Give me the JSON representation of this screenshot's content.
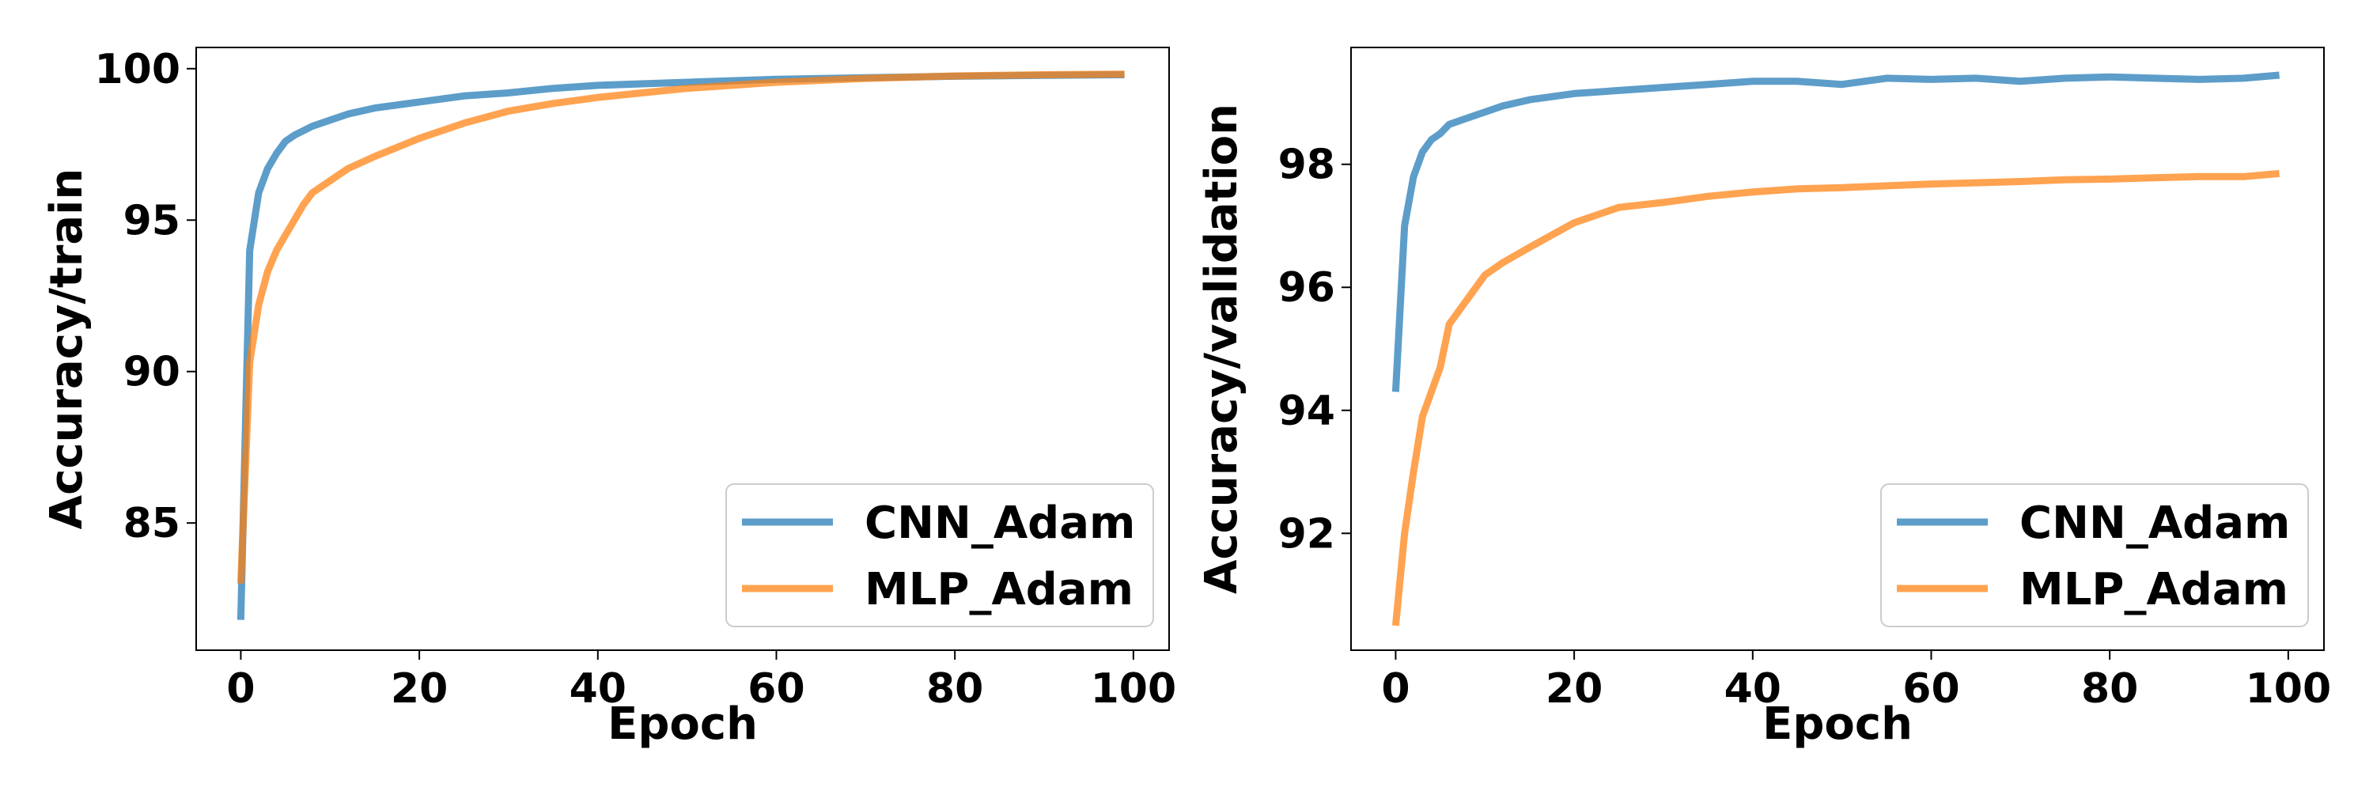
{
  "chart_data": [
    {
      "type": "line",
      "title": "",
      "xlabel": "Epoch",
      "ylabel": "Accuracy/train",
      "xlim": [
        -5,
        104
      ],
      "ylim": [
        80.8,
        100.7
      ],
      "xticks": [
        0,
        20,
        40,
        60,
        80,
        100
      ],
      "yticks": [
        85,
        90,
        95,
        100
      ],
      "grid": false,
      "legend_position": "lower-right",
      "series": [
        {
          "name": "CNN_Adam",
          "color": "#1f77b4",
          "points": [
            [
              0,
              81.8
            ],
            [
              1,
              94.0
            ],
            [
              2,
              95.9
            ],
            [
              3,
              96.7
            ],
            [
              4,
              97.2
            ],
            [
              5,
              97.6
            ],
            [
              6,
              97.8
            ],
            [
              8,
              98.1
            ],
            [
              10,
              98.3
            ],
            [
              12,
              98.5
            ],
            [
              15,
              98.7
            ],
            [
              20,
              98.9
            ],
            [
              25,
              99.1
            ],
            [
              30,
              99.2
            ],
            [
              35,
              99.35
            ],
            [
              40,
              99.45
            ],
            [
              50,
              99.55
            ],
            [
              60,
              99.65
            ],
            [
              70,
              99.7
            ],
            [
              80,
              99.75
            ],
            [
              90,
              99.78
            ],
            [
              99,
              99.8
            ]
          ]
        },
        {
          "name": "MLP_Adam",
          "color": "#ff7f0e",
          "points": [
            [
              0,
              83.0
            ],
            [
              1,
              90.3
            ],
            [
              2,
              92.2
            ],
            [
              3,
              93.3
            ],
            [
              4,
              94.0
            ],
            [
              5,
              94.5
            ],
            [
              6,
              95.0
            ],
            [
              7,
              95.5
            ],
            [
              8,
              95.9
            ],
            [
              10,
              96.3
            ],
            [
              12,
              96.7
            ],
            [
              15,
              97.1
            ],
            [
              20,
              97.7
            ],
            [
              25,
              98.2
            ],
            [
              30,
              98.6
            ],
            [
              35,
              98.85
            ],
            [
              40,
              99.05
            ],
            [
              45,
              99.2
            ],
            [
              50,
              99.35
            ],
            [
              60,
              99.55
            ],
            [
              70,
              99.68
            ],
            [
              80,
              99.76
            ],
            [
              90,
              99.8
            ],
            [
              99,
              99.82
            ]
          ]
        }
      ]
    },
    {
      "type": "line",
      "title": "",
      "xlabel": "Epoch",
      "ylabel": "Accuracy/validation",
      "xlim": [
        -5,
        104
      ],
      "ylim": [
        90.1,
        99.9
      ],
      "xticks": [
        0,
        20,
        40,
        60,
        80,
        100
      ],
      "yticks": [
        92,
        94,
        96,
        98
      ],
      "grid": false,
      "legend_position": "lower-right",
      "series": [
        {
          "name": "CNN_Adam",
          "color": "#1f77b4",
          "points": [
            [
              0,
              94.3
            ],
            [
              1,
              97.0
            ],
            [
              2,
              97.8
            ],
            [
              3,
              98.2
            ],
            [
              4,
              98.4
            ],
            [
              5,
              98.5
            ],
            [
              6,
              98.65
            ],
            [
              8,
              98.75
            ],
            [
              10,
              98.85
            ],
            [
              12,
              98.95
            ],
            [
              15,
              99.05
            ],
            [
              20,
              99.15
            ],
            [
              25,
              99.2
            ],
            [
              30,
              99.25
            ],
            [
              35,
              99.3
            ],
            [
              40,
              99.35
            ],
            [
              45,
              99.35
            ],
            [
              50,
              99.3
            ],
            [
              55,
              99.4
            ],
            [
              60,
              99.38
            ],
            [
              65,
              99.4
            ],
            [
              70,
              99.35
            ],
            [
              75,
              99.4
            ],
            [
              80,
              99.42
            ],
            [
              85,
              99.4
            ],
            [
              90,
              99.38
            ],
            [
              95,
              99.4
            ],
            [
              99,
              99.45
            ]
          ]
        },
        {
          "name": "MLP_Adam",
          "color": "#ff7f0e",
          "points": [
            [
              0,
              90.5
            ],
            [
              1,
              92.0
            ],
            [
              2,
              93.0
            ],
            [
              3,
              93.9
            ],
            [
              4,
              94.3
            ],
            [
              5,
              94.7
            ],
            [
              6,
              95.4
            ],
            [
              8,
              95.8
            ],
            [
              10,
              96.2
            ],
            [
              12,
              96.4
            ],
            [
              15,
              96.65
            ],
            [
              20,
              97.05
            ],
            [
              25,
              97.3
            ],
            [
              30,
              97.38
            ],
            [
              35,
              97.48
            ],
            [
              40,
              97.55
            ],
            [
              45,
              97.6
            ],
            [
              50,
              97.62
            ],
            [
              55,
              97.65
            ],
            [
              60,
              97.68
            ],
            [
              65,
              97.7
            ],
            [
              70,
              97.72
            ],
            [
              75,
              97.75
            ],
            [
              80,
              97.76
            ],
            [
              85,
              97.78
            ],
            [
              90,
              97.8
            ],
            [
              95,
              97.8
            ],
            [
              99,
              97.85
            ]
          ]
        }
      ]
    }
  ]
}
